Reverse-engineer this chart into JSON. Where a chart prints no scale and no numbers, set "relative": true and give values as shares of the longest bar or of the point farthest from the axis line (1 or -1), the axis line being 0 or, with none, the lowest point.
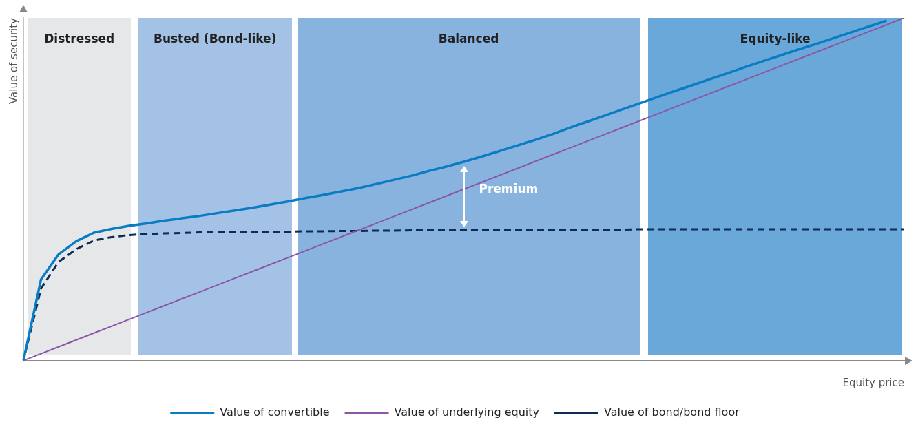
{
  "chart_data": {
    "type": "line",
    "relative": true,
    "xlabel": "Equity price",
    "ylabel": "Value of security",
    "legend": "bottom",
    "marker": "none",
    "categories": [
      null,
      null,
      null,
      null,
      null,
      null,
      null,
      null,
      null,
      null,
      null,
      null,
      null,
      null,
      null,
      null,
      null,
      null,
      null,
      null,
      null,
      null,
      null,
      null,
      null,
      null,
      null,
      null,
      null,
      null,
      null,
      null,
      null,
      null,
      null,
      null,
      null,
      null,
      null,
      null,
      null,
      null,
      null,
      null,
      null,
      null,
      null,
      null,
      null,
      null,
      null
    ],
    "series": [
      {
        "name": "Value of convertible",
        "color": "#0a7cc4",
        "line_style": "solid",
        "values": [
          0,
          0.237,
          0.31,
          0.348,
          0.373,
          0.384,
          0.393,
          0.4,
          0.408,
          0.415,
          0.422,
          0.43,
          0.438,
          0.446,
          0.455,
          0.464,
          0.474,
          0.483,
          0.493,
          0.503,
          0.515,
          0.527,
          0.539,
          0.553,
          0.566,
          0.58,
          0.595,
          0.611,
          0.627,
          0.643,
          0.66,
          0.679,
          0.697,
          0.715,
          0.733,
          0.751,
          0.769,
          0.787,
          0.804,
          0.822,
          0.839,
          0.857,
          0.874,
          0.891,
          0.908,
          0.924,
          0.941,
          0.958,
          0.975,
          0.992,
          null
        ]
      },
      {
        "name": "Value of underlying equity",
        "color": "#8b55a8",
        "line_style": "solid",
        "values": [
          0,
          0.02,
          0.04,
          0.06,
          0.08,
          0.1,
          0.12,
          0.14,
          0.16,
          0.18,
          0.2,
          0.22,
          0.24,
          0.26,
          0.28,
          0.3,
          0.32,
          0.34,
          0.36,
          0.38,
          0.4,
          0.42,
          0.44,
          0.46,
          0.48,
          0.5,
          0.52,
          0.54,
          0.56,
          0.58,
          0.6,
          0.62,
          0.64,
          0.66,
          0.68,
          0.7,
          0.72,
          0.74,
          0.76,
          0.78,
          0.8,
          0.82,
          0.84,
          0.86,
          0.88,
          0.9,
          0.92,
          0.94,
          0.96,
          0.98,
          1
        ]
      },
      {
        "name": "Value of bond/bond floor",
        "color": "#0d2b55",
        "line_style": "dashed",
        "values": [
          0,
          0.21,
          0.288,
          0.325,
          0.35,
          0.36,
          0.366,
          0.369,
          0.371,
          0.372,
          0.374,
          0.374,
          0.375,
          0.375,
          0.376,
          0.376,
          0.377,
          0.377,
          0.378,
          0.378,
          0.379,
          0.379,
          0.38,
          0.38,
          0.38,
          0.381,
          0.381,
          0.381,
          0.381,
          0.382,
          0.382,
          0.382,
          0.382,
          0.382,
          0.382,
          0.383,
          0.383,
          0.383,
          0.383,
          0.383,
          0.383,
          0.383,
          0.383,
          0.383,
          0.383,
          0.383,
          0.383,
          0.383,
          0.383,
          0.383,
          0.383
        ]
      }
    ],
    "annotations": [
      "Distressed",
      "Busted (Bond-like)",
      "Balanced",
      "Equity-like",
      "Premium"
    ]
  }
}
